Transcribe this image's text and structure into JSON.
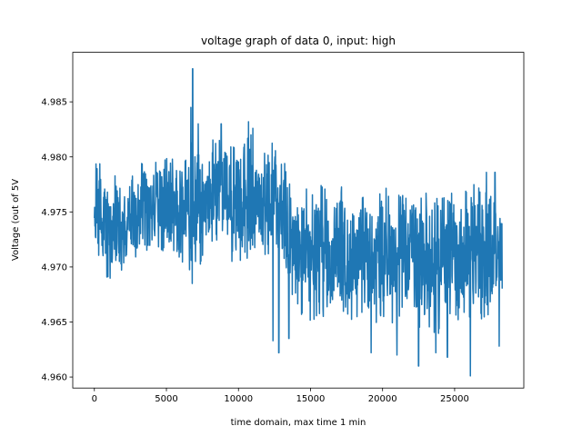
{
  "chart_data": {
    "type": "line",
    "title": "voltage graph of data 0, input: high",
    "xlabel": "time domain, max time 1 min",
    "ylabel": "Voltage (out of 5V",
    "xlim": [
      -1500,
      29800
    ],
    "ylim": [
      4.959,
      4.9895
    ],
    "xticks": [
      0,
      5000,
      10000,
      15000,
      20000,
      25000
    ],
    "xtick_labels": [
      "0",
      "5000",
      "10000",
      "15000",
      "20000",
      "25000"
    ],
    "yticks": [
      4.96,
      4.965,
      4.97,
      4.975,
      4.98,
      4.985
    ],
    "ytick_labels": [
      "4.960",
      "4.965",
      "4.970",
      "4.975",
      "4.980",
      "4.985"
    ],
    "grid": false,
    "series": [
      {
        "color": "#1f77b4",
        "x_start": 0,
        "x_end": 28300,
        "low": [
          4.9712,
          4.97,
          4.9685,
          4.9688,
          4.969,
          4.9697,
          4.97,
          4.97,
          4.9705,
          4.9712,
          4.9715,
          4.9718,
          4.971,
          4.9712,
          4.9712,
          4.9705,
          4.97,
          4.969,
          4.97,
          4.9708,
          4.9715,
          4.972,
          4.972,
          4.9712,
          4.97,
          4.9688,
          4.97,
          4.9708,
          4.9715,
          4.9705,
          4.97,
          4.9712,
          4.971,
          4.9692,
          4.967,
          4.9658,
          4.965,
          4.965,
          4.9645,
          4.965,
          4.9655,
          4.9658,
          4.966,
          4.9655,
          4.965,
          4.965,
          4.9655,
          4.9655,
          4.965,
          4.965,
          4.9645,
          4.9645,
          4.965,
          4.9648,
          4.9638,
          4.9635,
          4.964,
          4.9648,
          4.964,
          4.9635,
          4.9645,
          4.965,
          4.9648,
          4.9652,
          4.9655,
          4.9652,
          4.965,
          4.9652,
          4.9655,
          4.9658,
          4.966
        ],
        "high": [
          4.9798,
          4.9795,
          4.978,
          4.9785,
          4.9785,
          4.978,
          4.9782,
          4.979,
          4.9795,
          4.979,
          4.9795,
          4.98,
          4.98,
          4.9805,
          4.9795,
          4.979,
          4.9812,
          4.9815,
          4.9808,
          4.981,
          4.9815,
          4.982,
          4.9815,
          4.9812,
          4.981,
          4.9815,
          4.982,
          4.9825,
          4.9818,
          4.9815,
          4.982,
          4.9818,
          4.981,
          4.979,
          4.977,
          4.9768,
          4.9775,
          4.978,
          4.978,
          4.9775,
          4.977,
          4.977,
          4.9778,
          4.9775,
          4.9765,
          4.977,
          4.978,
          4.9775,
          4.9772,
          4.9778,
          4.978,
          4.977,
          4.9765,
          4.9772,
          4.9775,
          4.977,
          4.9765,
          4.977,
          4.9775,
          4.977,
          4.9765,
          4.977,
          4.9768,
          4.976,
          4.9775,
          4.9782,
          4.9785,
          4.977,
          4.9765,
          4.9768,
          4.9762
        ],
        "spikes": [
          [
            6820,
            4.988
          ],
          [
            6790,
            4.9685
          ],
          [
            6700,
            4.9845
          ],
          [
            7200,
            4.983
          ],
          [
            8800,
            4.983
          ],
          [
            10700,
            4.9832
          ],
          [
            11000,
            4.9826
          ],
          [
            12400,
            4.9633
          ],
          [
            12800,
            4.9622
          ],
          [
            13500,
            4.9635
          ],
          [
            19200,
            4.9622
          ],
          [
            21000,
            4.962
          ],
          [
            22500,
            4.961
          ],
          [
            23700,
            4.9622
          ],
          [
            24500,
            4.9618
          ],
          [
            26100,
            4.9601
          ],
          [
            27200,
            4.9786
          ],
          [
            27800,
            4.9786
          ],
          [
            28100,
            4.9628
          ]
        ]
      }
    ]
  }
}
